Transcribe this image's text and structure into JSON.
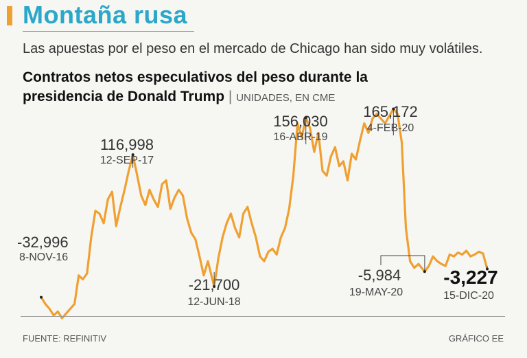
{
  "header": {
    "title": "Montaña rusa",
    "subtitle": "Las apuestas por el peso en el mercado de Chicago han sido muy volátiles."
  },
  "chart_data": {
    "type": "line",
    "title_line1": "Contratos netos especulativos del peso durante la",
    "title_line2": "presidencia de Donald Trump",
    "separator": "|",
    "units": "UNIDADES, EN CME",
    "color": "#f0a030",
    "ylim": [
      -60000,
      180000
    ],
    "x_start": "2016-11-08",
    "x_end": "2020-12-15",
    "series": [
      {
        "points": [
          [
            "2016-11-08",
            -32996
          ],
          [
            "2016-11-22",
            -40000
          ],
          [
            "2016-12-06",
            -45000
          ],
          [
            "2016-12-20",
            -52000
          ],
          [
            "2017-01-03",
            -48000
          ],
          [
            "2017-01-17",
            -55000
          ],
          [
            "2017-01-31",
            -50000
          ],
          [
            "2017-02-14",
            -45000
          ],
          [
            "2017-02-28",
            -40000
          ],
          [
            "2017-03-14",
            -10000
          ],
          [
            "2017-03-28",
            -14000
          ],
          [
            "2017-04-11",
            -8000
          ],
          [
            "2017-04-25",
            30000
          ],
          [
            "2017-05-09",
            58000
          ],
          [
            "2017-05-23",
            55000
          ],
          [
            "2017-06-06",
            45000
          ],
          [
            "2017-06-20",
            70000
          ],
          [
            "2017-07-04",
            78000
          ],
          [
            "2017-07-18",
            42000
          ],
          [
            "2017-08-01",
            62000
          ],
          [
            "2017-08-15",
            80000
          ],
          [
            "2017-08-29",
            100000
          ],
          [
            "2017-09-12",
            116998
          ],
          [
            "2017-09-26",
            96000
          ],
          [
            "2017-10-10",
            74000
          ],
          [
            "2017-10-24",
            64000
          ],
          [
            "2017-11-07",
            80000
          ],
          [
            "2017-11-21",
            70000
          ],
          [
            "2017-12-05",
            62000
          ],
          [
            "2017-12-19",
            86000
          ],
          [
            "2018-01-02",
            90000
          ],
          [
            "2018-01-16",
            60000
          ],
          [
            "2018-01-30",
            72000
          ],
          [
            "2018-02-13",
            80000
          ],
          [
            "2018-02-27",
            74000
          ],
          [
            "2018-03-13",
            50000
          ],
          [
            "2018-03-27",
            35000
          ],
          [
            "2018-04-10",
            28000
          ],
          [
            "2018-04-24",
            10000
          ],
          [
            "2018-05-08",
            -10000
          ],
          [
            "2018-05-22",
            5000
          ],
          [
            "2018-06-12",
            -21700
          ],
          [
            "2018-06-26",
            8000
          ],
          [
            "2018-07-10",
            30000
          ],
          [
            "2018-07-24",
            45000
          ],
          [
            "2018-08-07",
            55000
          ],
          [
            "2018-08-21",
            40000
          ],
          [
            "2018-09-04",
            30000
          ],
          [
            "2018-09-18",
            55000
          ],
          [
            "2018-10-02",
            62000
          ],
          [
            "2018-10-16",
            45000
          ],
          [
            "2018-10-30",
            30000
          ],
          [
            "2018-11-13",
            10000
          ],
          [
            "2018-11-27",
            5000
          ],
          [
            "2018-12-11",
            15000
          ],
          [
            "2018-12-25",
            18000
          ],
          [
            "2019-01-08",
            12000
          ],
          [
            "2019-01-22",
            30000
          ],
          [
            "2019-02-05",
            40000
          ],
          [
            "2019-02-19",
            60000
          ],
          [
            "2019-03-05",
            95000
          ],
          [
            "2019-03-19",
            150000
          ],
          [
            "2019-04-02",
            135000
          ],
          [
            "2019-04-16",
            156030
          ],
          [
            "2019-04-30",
            145000
          ],
          [
            "2019-05-14",
            120000
          ],
          [
            "2019-05-28",
            140000
          ],
          [
            "2019-06-11",
            100000
          ],
          [
            "2019-06-25",
            95000
          ],
          [
            "2019-07-09",
            115000
          ],
          [
            "2019-07-23",
            125000
          ],
          [
            "2019-08-06",
            105000
          ],
          [
            "2019-08-20",
            110000
          ],
          [
            "2019-09-03",
            90000
          ],
          [
            "2019-09-17",
            118000
          ],
          [
            "2019-10-01",
            112000
          ],
          [
            "2019-10-15",
            132000
          ],
          [
            "2019-10-29",
            150000
          ],
          [
            "2019-11-12",
            140000
          ],
          [
            "2019-11-26",
            155000
          ],
          [
            "2019-12-10",
            160000
          ],
          [
            "2020-01-07",
            150000
          ],
          [
            "2020-02-04",
            165172
          ],
          [
            "2020-02-18",
            160000
          ],
          [
            "2020-03-03",
            130000
          ],
          [
            "2020-03-17",
            40000
          ],
          [
            "2020-03-31",
            5000
          ],
          [
            "2020-04-14",
            -2000
          ],
          [
            "2020-04-28",
            2000
          ],
          [
            "2020-05-19",
            -5984
          ],
          [
            "2020-06-02",
            0
          ],
          [
            "2020-06-16",
            10000
          ],
          [
            "2020-06-30",
            5000
          ],
          [
            "2020-07-14",
            2000
          ],
          [
            "2020-07-28",
            0
          ],
          [
            "2020-08-11",
            12000
          ],
          [
            "2020-08-25",
            10000
          ],
          [
            "2020-09-08",
            14000
          ],
          [
            "2020-09-22",
            12000
          ],
          [
            "2020-10-06",
            16000
          ],
          [
            "2020-10-20",
            10000
          ],
          [
            "2020-11-03",
            12000
          ],
          [
            "2020-11-17",
            15000
          ],
          [
            "2020-12-01",
            13000
          ],
          [
            "2020-12-15",
            -3227
          ]
        ]
      }
    ],
    "annotations": [
      {
        "id": "nov16",
        "date": "2016-11-08",
        "value": -32996,
        "value_label": "-32,996",
        "date_label": "8-NOV-16",
        "bold": false
      },
      {
        "id": "sep17",
        "date": "2017-09-12",
        "value": 116998,
        "value_label": "116,998",
        "date_label": "12-SEP-17",
        "bold": false
      },
      {
        "id": "jun18",
        "date": "2018-06-12",
        "value": -21700,
        "value_label": "-21,700",
        "date_label": "12-JUN-18",
        "bold": false
      },
      {
        "id": "apr19",
        "date": "2019-04-16",
        "value": 156030,
        "value_label": "156,030",
        "date_label": "16-ABR-19",
        "bold": false
      },
      {
        "id": "feb20",
        "date": "2020-02-04",
        "value": 165172,
        "value_label": "165,172",
        "date_label": "4-FEB-20",
        "bold": false
      },
      {
        "id": "may20",
        "date": "2020-05-19",
        "value": -5984,
        "value_label": "-5,984",
        "date_label": "19-MAY-20",
        "bold": false
      },
      {
        "id": "dec20",
        "date": "2020-12-15",
        "value": -3227,
        "value_label": "-3,227",
        "date_label": "15-DIC-20",
        "bold": true
      }
    ]
  },
  "footer": {
    "source": "FUENTE: REFINITIV",
    "credit": "GRÁFICO EE"
  }
}
